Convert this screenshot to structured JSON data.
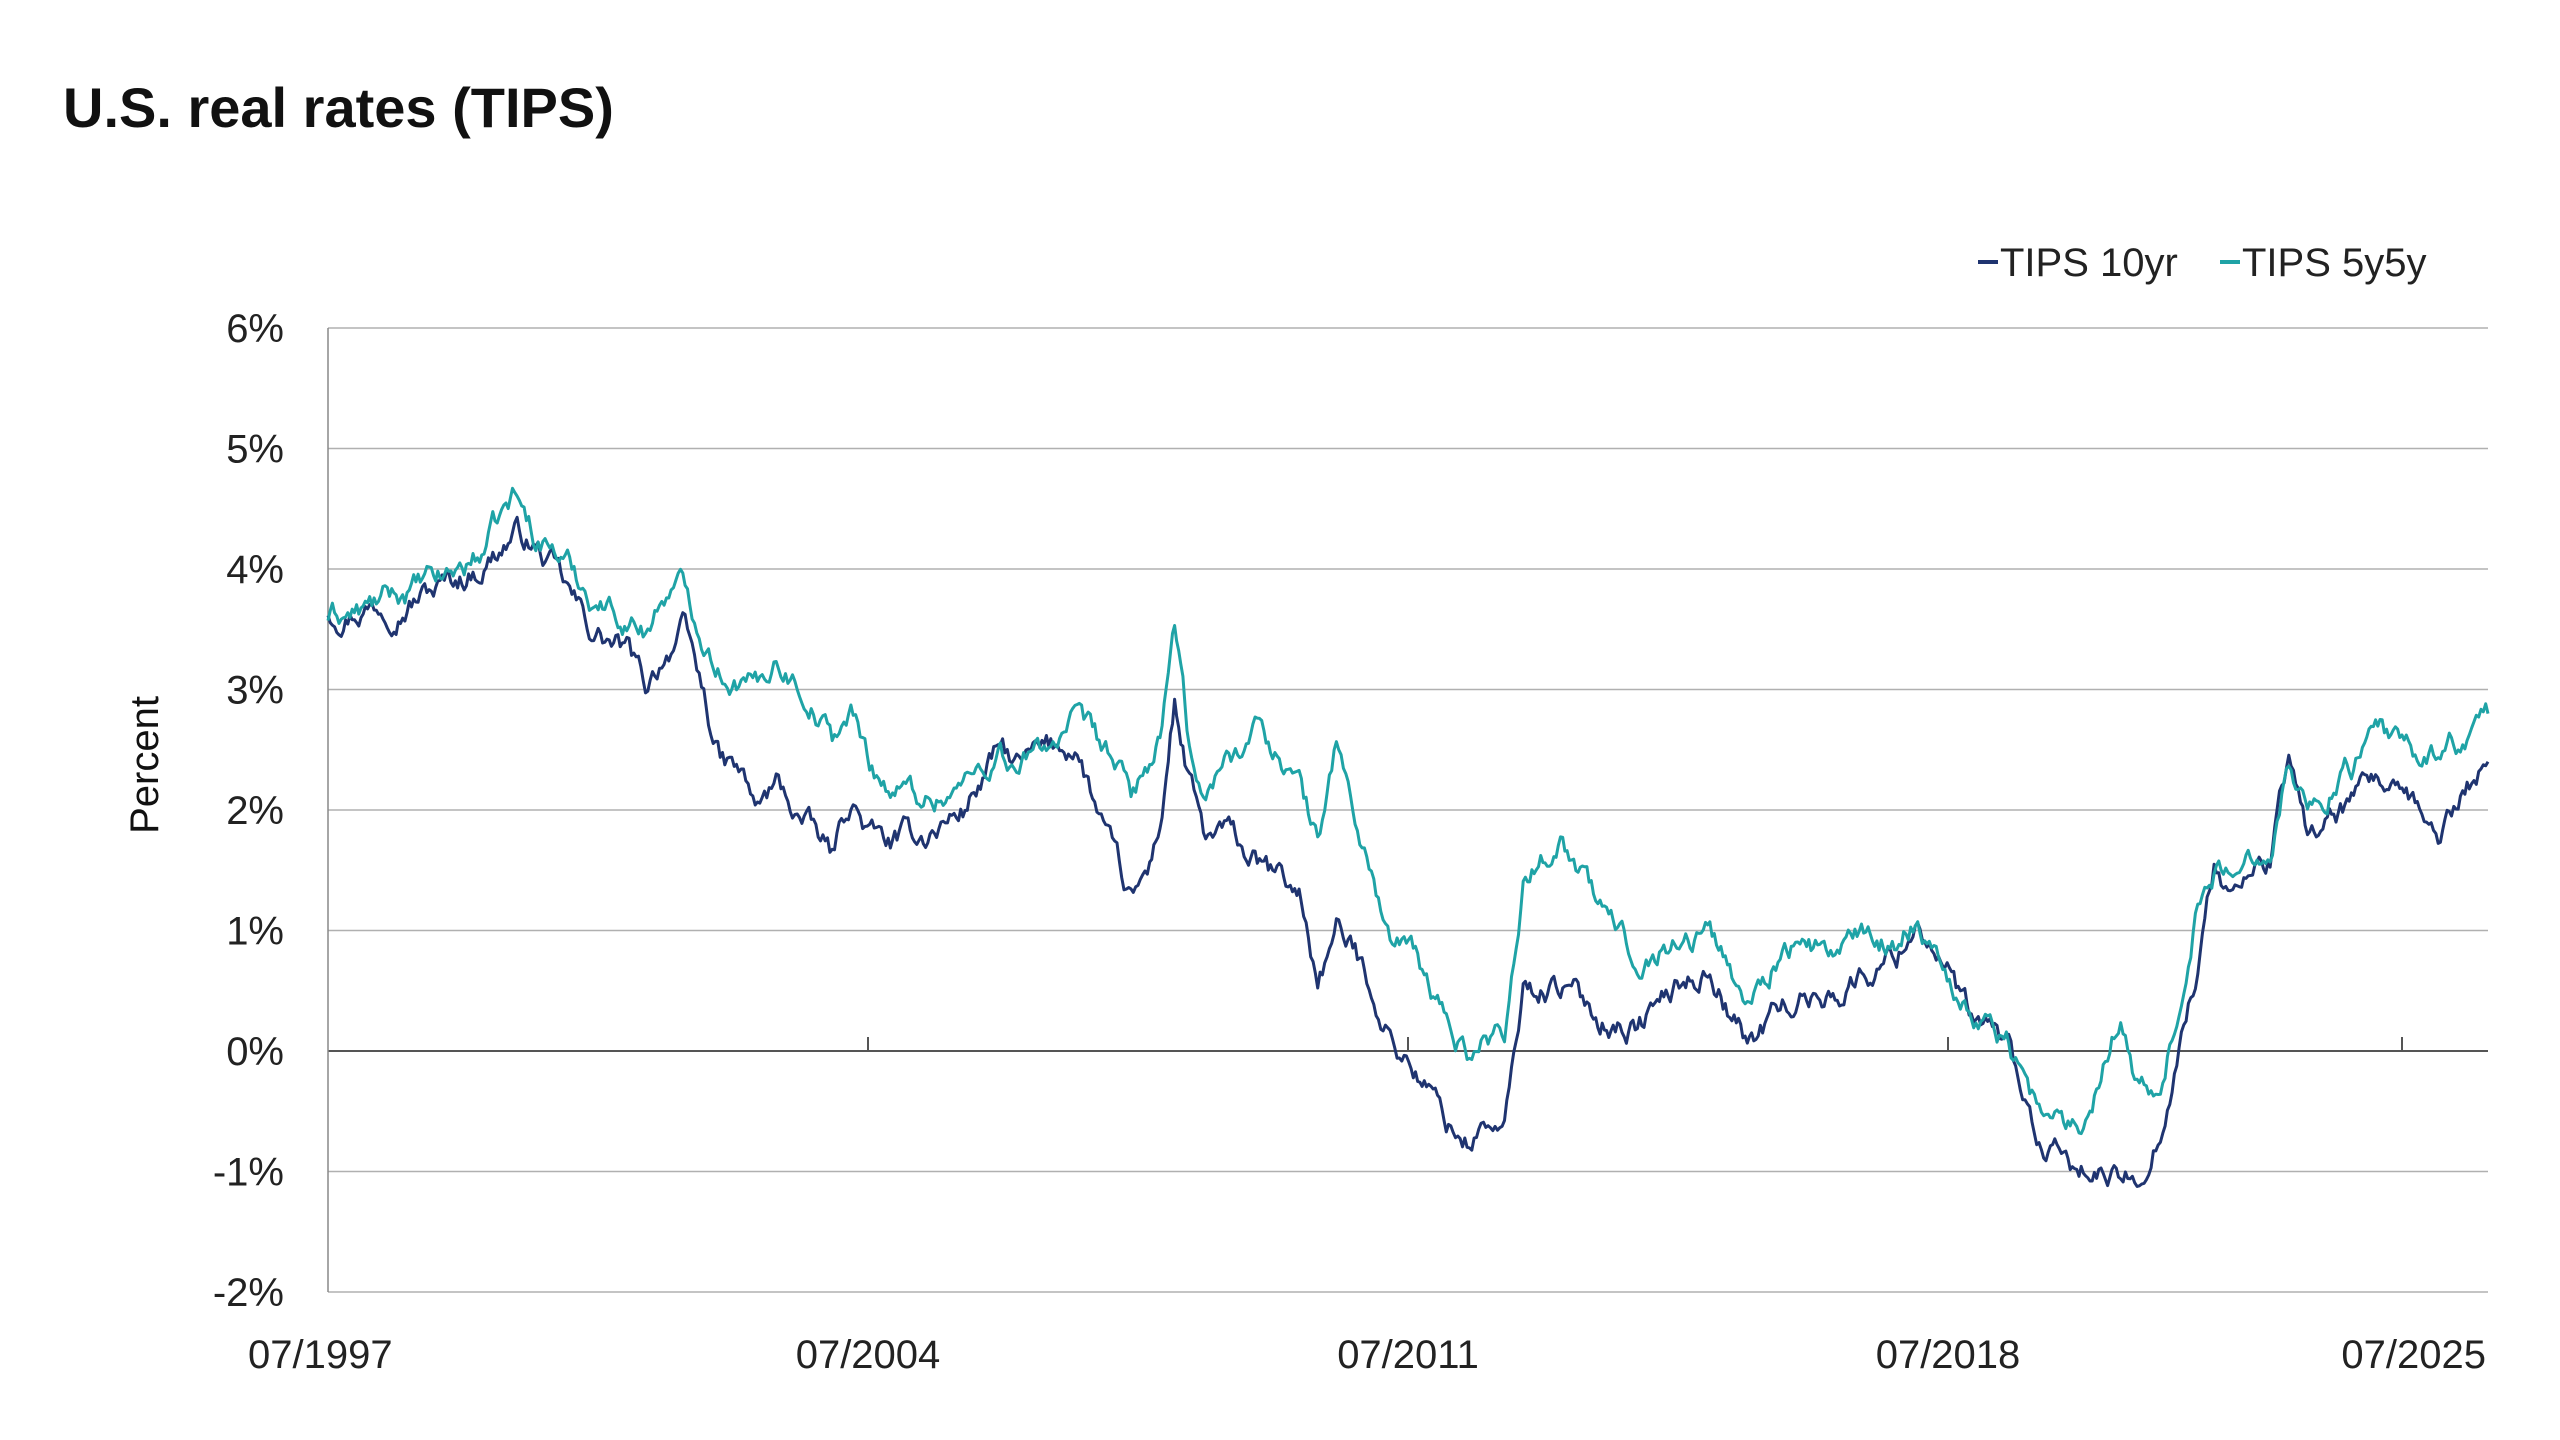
{
  "chart_data": {
    "type": "line",
    "title": "U.S. real rates (TIPS)",
    "xlabel": "",
    "ylabel": "Percent",
    "x_tick_labels": [
      "07/1997",
      "07/2004",
      "07/2011",
      "07/2018",
      "07/2025"
    ],
    "y_tick_labels": [
      "6%",
      "5%",
      "4%",
      "3%",
      "2%",
      "1%",
      "0%",
      "-1%",
      "-2%"
    ],
    "ylim": [
      -2,
      6
    ],
    "xlim": [
      "1997-07",
      "2026-06"
    ],
    "grid": "horizontal",
    "legend_position": "top-right",
    "colors": {
      "TIPS 10yr": "#1f3470",
      "TIPS 5y5y": "#1fa3a6"
    },
    "series": [
      {
        "name": "TIPS 10yr",
        "points": [
          [
            "1997-07",
            3.65
          ],
          [
            "1998-01",
            3.7
          ],
          [
            "1998-07",
            3.75
          ],
          [
            "1999-01",
            3.85
          ],
          [
            "1999-07",
            4.0
          ],
          [
            "2000-01",
            4.3
          ],
          [
            "2000-04",
            4.2
          ],
          [
            "2000-07",
            4.0
          ],
          [
            "2001-01",
            3.5
          ],
          [
            "2001-07",
            3.3
          ],
          [
            "2001-10",
            3.0
          ],
          [
            "2002-01",
            3.3
          ],
          [
            "2002-04",
            3.5
          ],
          [
            "2002-07",
            3.0
          ],
          [
            "2002-10",
            2.4
          ],
          [
            "2003-01",
            2.3
          ],
          [
            "2003-04",
            2.0
          ],
          [
            "2003-07",
            2.2
          ],
          [
            "2003-10",
            2.0
          ],
          [
            "2004-01",
            1.8
          ],
          [
            "2004-04",
            1.6
          ],
          [
            "2004-07",
            2.1
          ],
          [
            "2004-10",
            1.8
          ],
          [
            "2005-01",
            1.7
          ],
          [
            "2005-07",
            1.8
          ],
          [
            "2006-01",
            2.0
          ],
          [
            "2006-07",
            2.5
          ],
          [
            "2006-10",
            2.35
          ],
          [
            "2007-01",
            2.45
          ],
          [
            "2007-07",
            2.55
          ],
          [
            "2008-01",
            1.6
          ],
          [
            "2008-04",
            1.2
          ],
          [
            "2008-07",
            1.5
          ],
          [
            "2008-09",
            2.0
          ],
          [
            "2008-11",
            2.9
          ],
          [
            "2009-01",
            2.3
          ],
          [
            "2009-04",
            1.7
          ],
          [
            "2009-07",
            1.8
          ],
          [
            "2010-01",
            1.5
          ],
          [
            "2010-07",
            1.3
          ],
          [
            "2010-10",
            0.6
          ],
          [
            "2011-01",
            1.0
          ],
          [
            "2011-04",
            0.8
          ],
          [
            "2011-07",
            0.5
          ],
          [
            "2011-10",
            0.1
          ],
          [
            "2012-01",
            -0.1
          ],
          [
            "2012-07",
            -0.6
          ],
          [
            "2012-10",
            -0.75
          ],
          [
            "2013-01",
            -0.6
          ],
          [
            "2013-04",
            -0.7
          ],
          [
            "2013-07",
            0.5
          ],
          [
            "2014-01",
            0.55
          ],
          [
            "2014-07",
            0.3
          ],
          [
            "2015-01",
            0.2
          ],
          [
            "2015-07",
            0.5
          ],
          [
            "2016-01",
            0.7
          ],
          [
            "2016-07",
            0.05
          ],
          [
            "2017-01",
            0.4
          ],
          [
            "2017-07",
            0.45
          ],
          [
            "2018-01",
            0.6
          ],
          [
            "2018-07",
            0.8
          ],
          [
            "2018-10",
            1.1
          ],
          [
            "2019-01",
            0.9
          ],
          [
            "2019-07",
            0.2
          ],
          [
            "2019-10",
            0.15
          ],
          [
            "2020-01",
            0.0
          ],
          [
            "2020-04",
            -0.5
          ],
          [
            "2020-07",
            -0.9
          ],
          [
            "2021-01",
            -1.0
          ],
          [
            "2021-07",
            -1.1
          ],
          [
            "2021-10",
            -1.0
          ],
          [
            "2022-01",
            -0.7
          ],
          [
            "2022-04",
            0.0
          ],
          [
            "2022-07",
            0.6
          ],
          [
            "2022-10",
            1.5
          ],
          [
            "2023-01",
            1.3
          ],
          [
            "2023-07",
            1.6
          ],
          [
            "2023-10",
            2.4
          ],
          [
            "2024-01",
            1.8
          ],
          [
            "2024-07",
            2.0
          ],
          [
            "2025-01",
            2.2
          ],
          [
            "2025-07",
            1.9
          ],
          [
            "2025-10",
            1.8
          ],
          [
            "2026-03",
            2.2
          ],
          [
            "2026-06",
            2.4
          ]
        ]
      },
      {
        "name": "TIPS 5y5y",
        "points": [
          [
            "1997-07",
            3.6
          ],
          [
            "1998-01",
            3.65
          ],
          [
            "1998-07",
            3.8
          ],
          [
            "1999-01",
            3.9
          ],
          [
            "1999-07",
            4.1
          ],
          [
            "2000-01",
            4.6
          ],
          [
            "2000-04",
            4.3
          ],
          [
            "2000-07",
            4.2
          ],
          [
            "2001-01",
            3.8
          ],
          [
            "2001-07",
            3.6
          ],
          [
            "2001-10",
            3.5
          ],
          [
            "2002-01",
            3.8
          ],
          [
            "2002-04",
            3.85
          ],
          [
            "2002-07",
            3.5
          ],
          [
            "2002-10",
            3.2
          ],
          [
            "2003-01",
            3.1
          ],
          [
            "2003-04",
            3.0
          ],
          [
            "2003-07",
            3.3
          ],
          [
            "2003-10",
            3.1
          ],
          [
            "2004-01",
            2.9
          ],
          [
            "2004-04",
            2.6
          ],
          [
            "2004-07",
            2.8
          ],
          [
            "2004-10",
            2.4
          ],
          [
            "2005-01",
            2.2
          ],
          [
            "2005-07",
            2.1
          ],
          [
            "2006-01",
            2.2
          ],
          [
            "2006-07",
            2.5
          ],
          [
            "2006-10",
            2.3
          ],
          [
            "2007-01",
            2.5
          ],
          [
            "2007-07",
            2.7
          ],
          [
            "2008-01",
            2.4
          ],
          [
            "2008-04",
            2.1
          ],
          [
            "2008-07",
            2.4
          ],
          [
            "2008-09",
            2.6
          ],
          [
            "2008-11",
            3.5
          ],
          [
            "2009-01",
            2.6
          ],
          [
            "2009-04",
            2.1
          ],
          [
            "2009-07",
            2.4
          ],
          [
            "2010-01",
            2.7
          ],
          [
            "2010-07",
            2.2
          ],
          [
            "2010-10",
            1.7
          ],
          [
            "2011-01",
            2.6
          ],
          [
            "2011-04",
            1.9
          ],
          [
            "2011-07",
            1.4
          ],
          [
            "2011-10",
            0.9
          ],
          [
            "2012-01",
            0.8
          ],
          [
            "2012-07",
            0.2
          ],
          [
            "2012-10",
            0.0
          ],
          [
            "2013-01",
            0.1
          ],
          [
            "2013-04",
            0.2
          ],
          [
            "2013-07",
            1.4
          ],
          [
            "2014-01",
            1.8
          ],
          [
            "2014-07",
            1.2
          ],
          [
            "2015-01",
            0.8
          ],
          [
            "2015-07",
            0.9
          ],
          [
            "2016-01",
            1.0
          ],
          [
            "2016-07",
            0.4
          ],
          [
            "2017-01",
            0.9
          ],
          [
            "2017-07",
            0.8
          ],
          [
            "2018-01",
            0.9
          ],
          [
            "2018-07",
            0.9
          ],
          [
            "2018-10",
            1.1
          ],
          [
            "2019-01",
            0.9
          ],
          [
            "2019-07",
            0.3
          ],
          [
            "2019-10",
            0.2
          ],
          [
            "2020-01",
            0.1
          ],
          [
            "2020-04",
            -0.3
          ],
          [
            "2020-07",
            -0.6
          ],
          [
            "2021-01",
            -0.6
          ],
          [
            "2021-07",
            0.4
          ],
          [
            "2021-10",
            -0.3
          ],
          [
            "2022-01",
            -0.4
          ],
          [
            "2022-04",
            0.3
          ],
          [
            "2022-07",
            1.2
          ],
          [
            "2022-10",
            1.5
          ],
          [
            "2023-01",
            1.4
          ],
          [
            "2023-07",
            1.8
          ],
          [
            "2023-10",
            2.45
          ],
          [
            "2024-01",
            2.0
          ],
          [
            "2024-07",
            2.3
          ],
          [
            "2025-01",
            2.6
          ],
          [
            "2025-07",
            2.4
          ],
          [
            "2025-10",
            2.5
          ],
          [
            "2026-03",
            2.6
          ],
          [
            "2026-06",
            2.8
          ]
        ]
      }
    ]
  }
}
